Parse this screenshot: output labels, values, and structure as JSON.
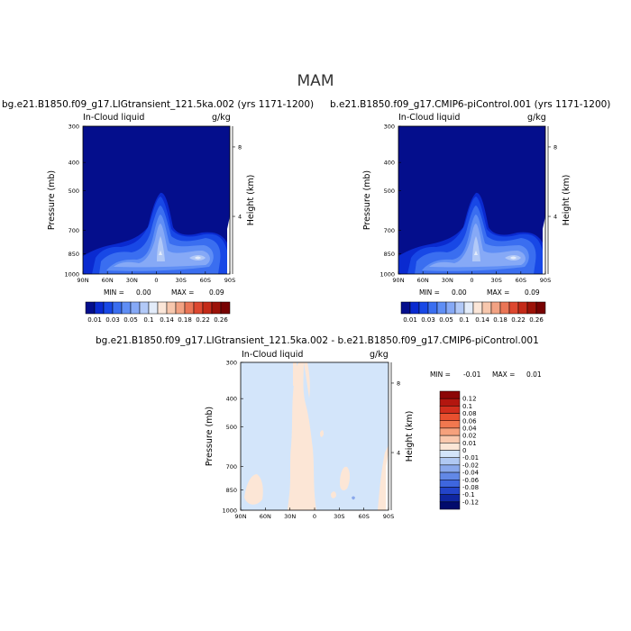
{
  "title": "MAM",
  "panels": [
    {
      "case": "bg.e21.B1850.f09_g17.LIGtransient_121.5ka.002 (yrs 1171-1200)",
      "variable": "In-Cloud liquid",
      "units": "g/kg",
      "min_label": "MIN =",
      "min_value": "0.00",
      "max_label": "MAX =",
      "max_value": "0.09"
    },
    {
      "case": "b.e21.B1850.f09_g17.CMIP6-piControl.001 (yrs 1171-1200)",
      "variable": "In-Cloud liquid",
      "units": "g/kg",
      "min_label": "MIN =",
      "min_value": "0.00",
      "max_label": "MAX =",
      "max_value": "0.09"
    },
    {
      "case": "bg.e21.B1850.f09_g17.LIGtransient_121.5ka.002 - b.e21.B1850.f09_g17.CMIP6-piControl.001",
      "variable": "In-Cloud liquid",
      "units": "g/kg",
      "min_label": "MIN =",
      "min_value": "-0.01",
      "max_label": "MAX =",
      "max_value": "0.01"
    }
  ],
  "axes": {
    "ylabel": "Pressure (mb)",
    "ylabel_right": "Height (km)",
    "xticks": [
      "90N",
      "60N",
      "30N",
      "0",
      "30S",
      "60S",
      "90S"
    ],
    "yticks": [
      "300",
      "400",
      "500",
      "700",
      "850",
      "1000"
    ],
    "height_ticks": [
      "8",
      "4"
    ]
  },
  "colorbars": {
    "abs_labels": [
      "0.01",
      "0.03",
      "0.05",
      "0.1",
      "0.14",
      "0.18",
      "0.22",
      "0.26"
    ],
    "abs_colors": [
      "#040e8c",
      "#0a2ad0",
      "#1848e6",
      "#3a6ef0",
      "#5f8ef5",
      "#86a9f6",
      "#b2c9f7",
      "#e3ecfa",
      "#fbe6d8",
      "#f7c7ad",
      "#f2a283",
      "#ea7556",
      "#dd4830",
      "#c42a18",
      "#9c1208",
      "#770202"
    ],
    "diff_labels": [
      "0.12",
      "0.1",
      "0.08",
      "0.06",
      "0.04",
      "0.02",
      "0.01",
      "0",
      "-0.01",
      "-0.02",
      "-0.04",
      "-0.06",
      "-0.08",
      "-0.1",
      "-0.12"
    ],
    "diff_colors": [
      "#8c0606",
      "#b3160f",
      "#d22e1d",
      "#e8502f",
      "#f2784f",
      "#f6a17c",
      "#fac8ad",
      "#fce6d6",
      "#d3e5fa",
      "#b0c9f3",
      "#8aa9ec",
      "#6288e6",
      "#3e66de",
      "#2344c9",
      "#0f26a0",
      "#020b6c"
    ]
  },
  "chart_data": [
    {
      "type": "heatmap",
      "title": "bg.e21.B1850.f09_g17.LIGtransient_121.5ka.002 (yrs 1171-1200)",
      "subtitle": "In-Cloud liquid",
      "units": "g/kg",
      "x_axis": [
        "90N",
        "60N",
        "30N",
        "0",
        "30S",
        "60S",
        "90S"
      ],
      "y_axis": [
        300,
        400,
        500,
        700,
        850,
        1000
      ],
      "ylabel": "Pressure (mb)",
      "ylabel_right": "Height (km)",
      "min": 0.0,
      "max": 0.09,
      "features": [
        {
          "description": "tropical maximum",
          "lat": 0,
          "p_top": 500,
          "peak": 0.09
        },
        {
          "description": "southern mid-latitude low-level maximum",
          "lat": "45S",
          "peak": 0.09
        },
        {
          "description": "northern mid-latitude low-level maximum",
          "lat": "50N",
          "peak": 0.05
        }
      ]
    },
    {
      "type": "heatmap",
      "title": "b.e21.B1850.f09_g17.CMIP6-piControl.001 (yrs 1171-1200)",
      "subtitle": "In-Cloud liquid",
      "units": "g/kg",
      "x_axis": [
        "90N",
        "60N",
        "30N",
        "0",
        "30S",
        "60S",
        "90S"
      ],
      "y_axis": [
        300,
        400,
        500,
        700,
        850,
        1000
      ],
      "ylabel": "Pressure (mb)",
      "ylabel_right": "Height (km)",
      "min": 0.0,
      "max": 0.09
    },
    {
      "type": "heatmap",
      "title": "bg.e21.B1850.f09_g17.LIGtransient_121.5ka.002 - b.e21.B1850.f09_g17.CMIP6-piControl.001",
      "subtitle": "In-Cloud liquid",
      "units": "g/kg",
      "x_axis": [
        "90N",
        "60N",
        "30N",
        "0",
        "30S",
        "60S",
        "90S"
      ],
      "y_axis": [
        300,
        400,
        500,
        700,
        850,
        1000
      ],
      "ylabel": "Pressure (mb)",
      "ylabel_right": "Height (km)",
      "min": -0.01,
      "max": 0.01
    }
  ]
}
